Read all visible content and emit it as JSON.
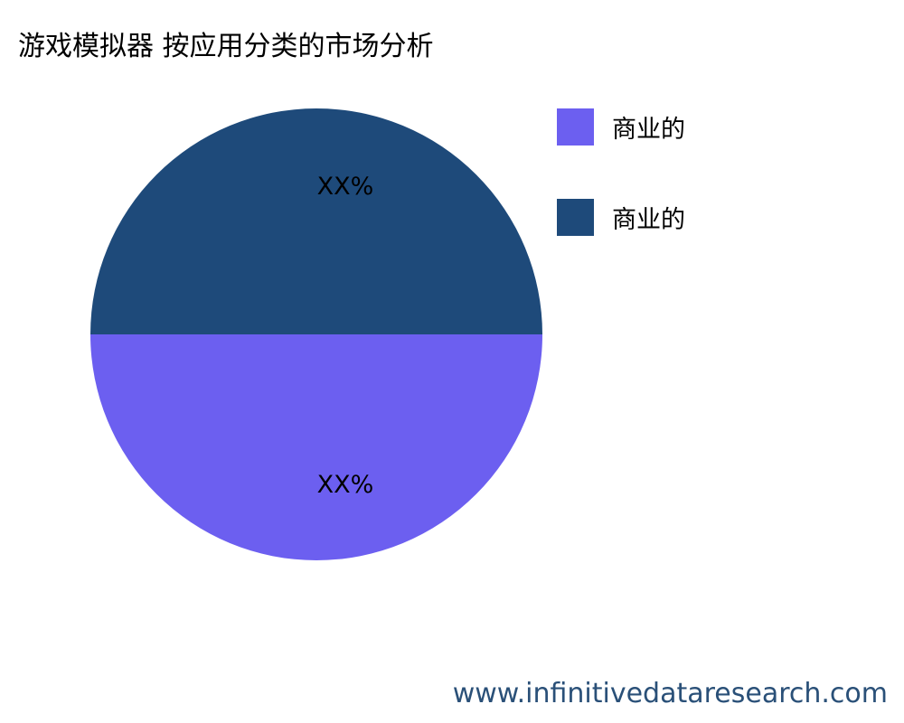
{
  "chart_data": {
    "type": "pie",
    "title": "游戏模拟器 按应用分类的市场分析",
    "slices": [
      {
        "label": "商业的",
        "value": 50,
        "data_label": "XX%",
        "color": "#6c5ff0"
      },
      {
        "label": "商业的",
        "value": 50,
        "data_label": "XX%",
        "color": "#1e4a7a"
      }
    ],
    "legend_placement": "top-right"
  },
  "watermark": "www.infinitivedataresearch.com"
}
